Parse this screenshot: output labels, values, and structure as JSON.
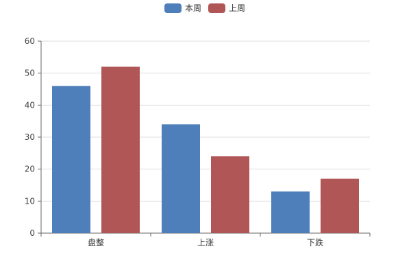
{
  "chart_data": {
    "type": "bar",
    "categories": [
      "盘整",
      "上涨",
      "下跌"
    ],
    "series": [
      {
        "name": "本周",
        "values": [
          46,
          34,
          13
        ],
        "color": "#4e7fbb"
      },
      {
        "name": "上周",
        "values": [
          52,
          24,
          17
        ],
        "color": "#b05656"
      }
    ],
    "ylim": [
      0,
      60
    ],
    "yticks": [
      0,
      10,
      20,
      30,
      40,
      50,
      60
    ],
    "grid": true,
    "legend_position": "top-center",
    "title": "",
    "xlabel": "",
    "ylabel": ""
  }
}
